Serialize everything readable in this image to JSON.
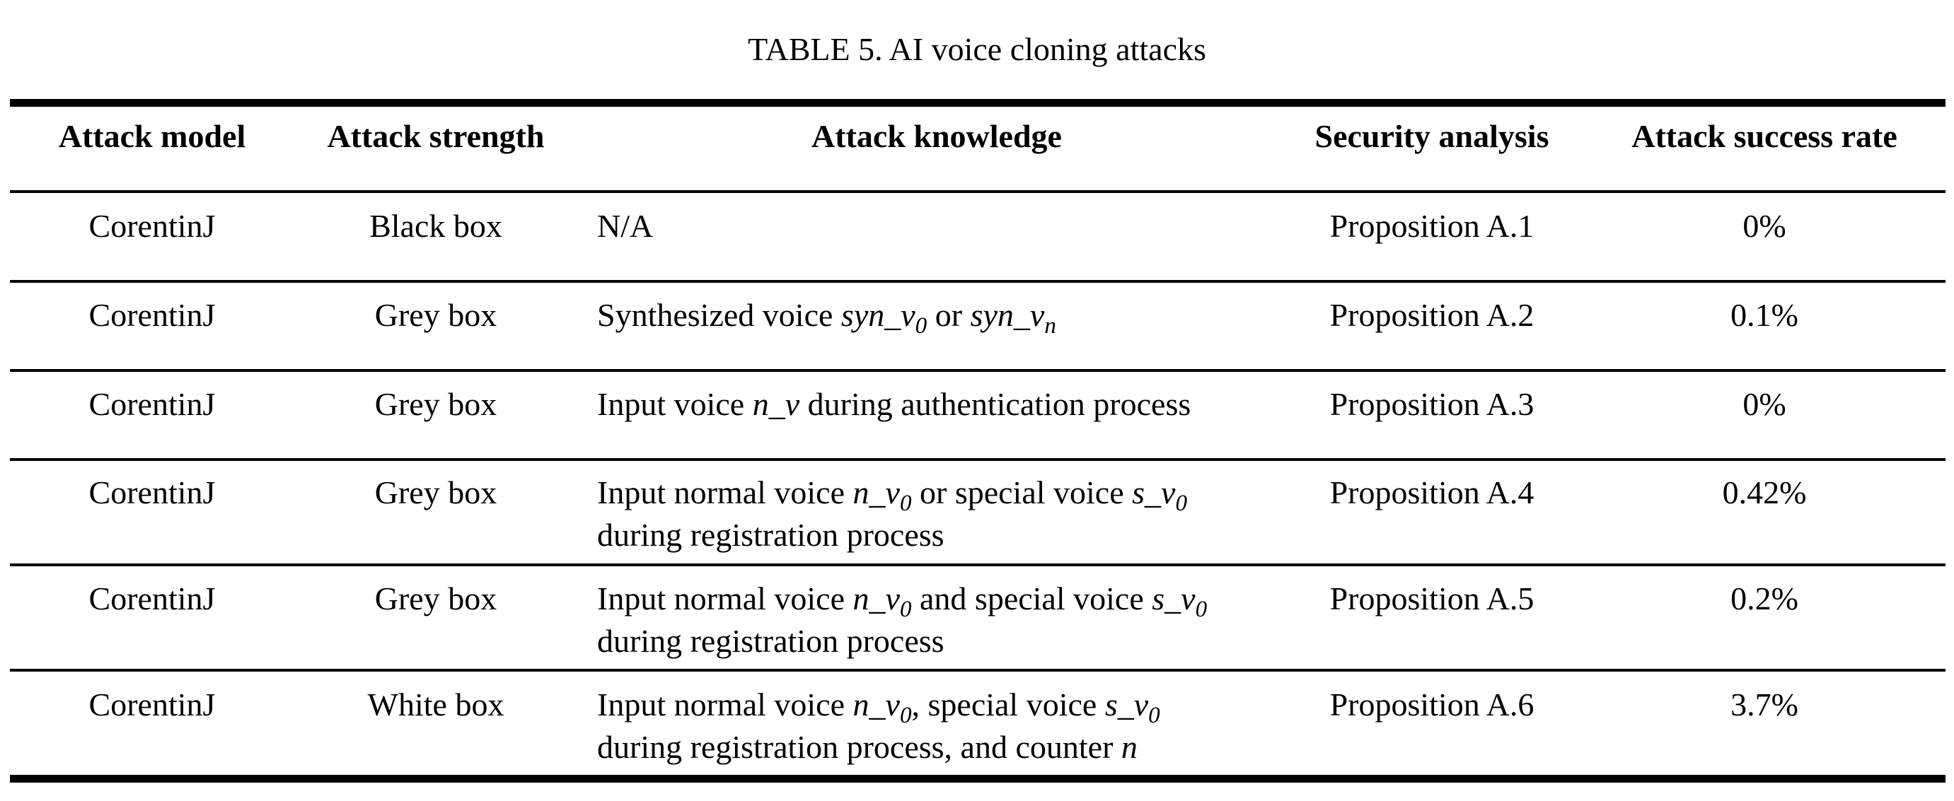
{
  "caption": "TABLE 5. AI voice cloning attacks",
  "headers": {
    "model": "Attack model",
    "strength": "Attack strength",
    "knowledge": "Attack knowledge",
    "security": "Security analysis",
    "rate": "Attack success rate"
  },
  "rows": [
    {
      "model": "CorentinJ",
      "strength": "Black box",
      "knowledge": {
        "t1": "N/A"
      },
      "security": "Proposition A.1",
      "rate": "0%"
    },
    {
      "model": "CorentinJ",
      "strength": "Grey box",
      "knowledge": {
        "t1": "Synthesized voice ",
        "v1": "syn_v",
        "s1": "0",
        "t2": " or ",
        "v2": "syn_v",
        "s2": "n"
      },
      "security": "Proposition A.2",
      "rate": "0.1%"
    },
    {
      "model": "CorentinJ",
      "strength": "Grey box",
      "knowledge": {
        "t1": "Input voice ",
        "v1": "n_v",
        "t2": " during authentication process"
      },
      "security": "Proposition A.3",
      "rate": "0%"
    },
    {
      "model": "CorentinJ",
      "strength": "Grey box",
      "knowledge": {
        "t1": "Input normal voice ",
        "v1": "n_v",
        "s1": "0",
        "t2": " or special voice ",
        "v2": "s_v",
        "s2": "0",
        "line2": "during registration process"
      },
      "security": "Proposition A.4",
      "rate": "0.42%"
    },
    {
      "model": "CorentinJ",
      "strength": "Grey box",
      "knowledge": {
        "t1": "Input normal voice ",
        "v1": "n_v",
        "s1": "0",
        "t2": " and special voice ",
        "v2": "s_v",
        "s2": "0",
        "line2": "during registration process"
      },
      "security": "Proposition A.5",
      "rate": "0.2%"
    },
    {
      "model": "CorentinJ",
      "strength": "White box",
      "knowledge": {
        "t1": "Input normal voice ",
        "v1": "n_v",
        "s1": "0",
        "t2": ", special voice ",
        "v2": "s_v",
        "s2": "0",
        "line2": "during registration process, and counter ",
        "v3": "n"
      },
      "security": "Proposition A.6",
      "rate": "3.7%"
    }
  ]
}
